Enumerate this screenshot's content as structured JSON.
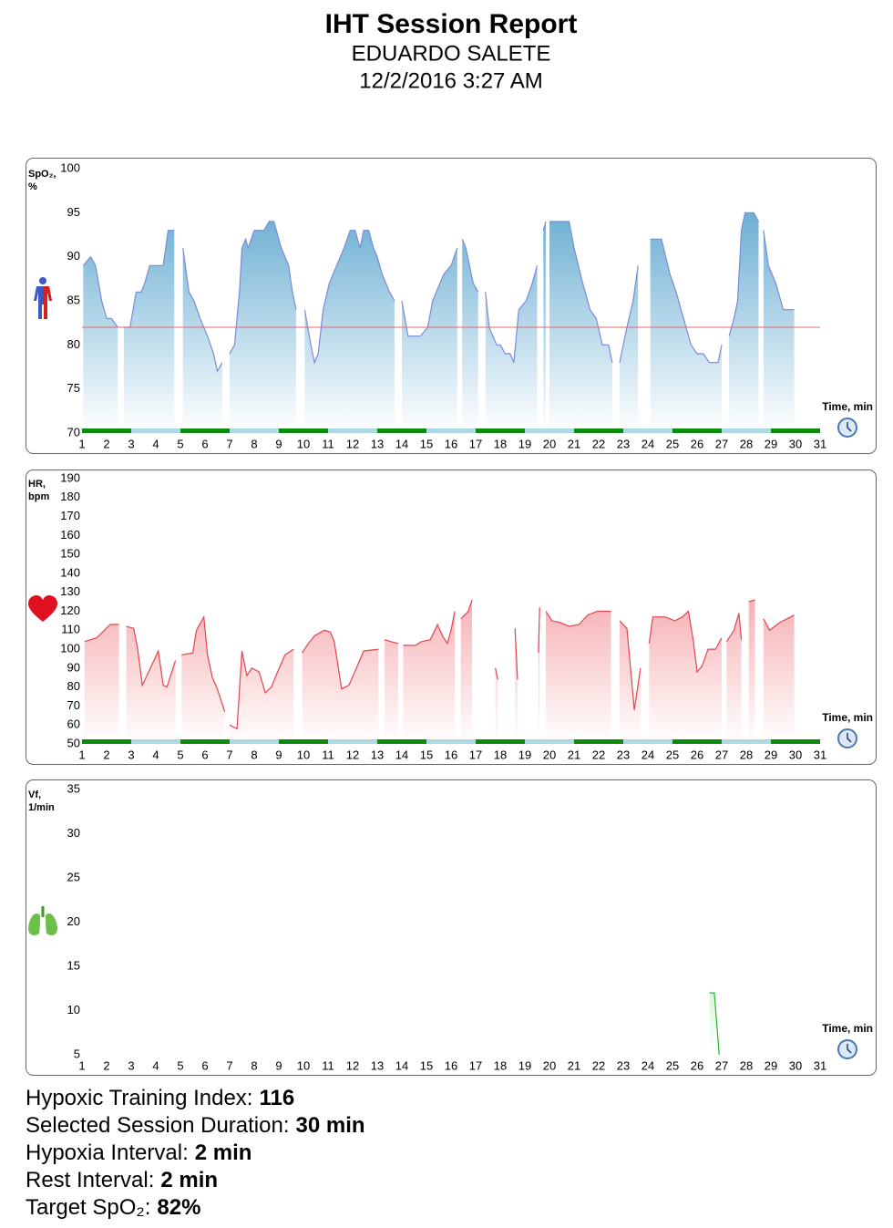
{
  "header": {
    "title": "IHT Session Report",
    "name": "EDUARDO SALETE",
    "date": "12/2/2016 3:27 AM"
  },
  "chart_data": [
    {
      "type": "area",
      "y_label": [
        "SpO₂,",
        "%"
      ],
      "x_label": "Time, min",
      "xlim": [
        1,
        31
      ],
      "xticks": [
        1,
        2,
        3,
        4,
        5,
        6,
        7,
        8,
        9,
        10,
        11,
        12,
        13,
        14,
        15,
        16,
        17,
        18,
        19,
        20,
        21,
        22,
        23,
        24,
        25,
        26,
        27,
        28,
        29,
        30,
        31
      ],
      "ylim": [
        70,
        100
      ],
      "yticks": [
        70,
        75,
        80,
        85,
        90,
        95,
        100
      ],
      "x": [
        1.05,
        1.35,
        1.55,
        1.8,
        2,
        2.2,
        2.45,
        2.58,
        2.7,
        2.95,
        3.2,
        3.4,
        3.55,
        3.75,
        4.1,
        4.3,
        4.5,
        4.75,
        4.9,
        5.1,
        5.35,
        5.55,
        5.8,
        6.1,
        6.35,
        6.5,
        6.7,
        6.85,
        7,
        7.2,
        7.4,
        7.5,
        7.65,
        7.75,
        8,
        8.4,
        8.6,
        8.8,
        9.1,
        9.4,
        9.55,
        9.7,
        9.88,
        10.05,
        10.3,
        10.45,
        10.6,
        10.8,
        11.05,
        11.35,
        11.65,
        11.9,
        12.1,
        12.3,
        12.45,
        12.65,
        12.85,
        13,
        13.2,
        13.5,
        13.7,
        13.82,
        14,
        14.25,
        14.5,
        14.75,
        15.05,
        15.25,
        15.4,
        15.7,
        16,
        16.25,
        16.35,
        16.45,
        16.6,
        16.9,
        17.1,
        17.25,
        17.4,
        17.55,
        17.85,
        18,
        18.2,
        18.4,
        18.55,
        18.75,
        19.05,
        19.3,
        19.5,
        19.65,
        19.75,
        19.85,
        19.92,
        20,
        20.8,
        21,
        21.35,
        21.65,
        21.9,
        22.15,
        22.4,
        22.55,
        22.7,
        22.85,
        23.15,
        23.4,
        23.6,
        23.85,
        24.1,
        24.55,
        24.9,
        25.15,
        25.45,
        25.75,
        26,
        26.25,
        26.5,
        26.85,
        27,
        27.15,
        27.3,
        27.5,
        27.65,
        27.8,
        27.95,
        28.3,
        28.5,
        28.6,
        28.7,
        28.9,
        29.2,
        29.5,
        29.95
      ],
      "values": [
        89,
        90,
        89,
        85,
        83,
        83,
        82,
        null,
        82,
        82,
        86,
        86,
        87,
        89,
        89,
        89,
        93,
        93,
        null,
        91,
        86,
        85,
        83,
        81,
        79,
        77,
        78,
        null,
        79,
        80,
        86,
        91,
        92,
        91,
        93,
        93,
        94,
        94,
        91,
        89,
        86,
        84,
        null,
        84,
        80,
        78,
        79,
        84,
        87,
        89,
        91,
        93,
        93,
        91,
        93,
        93,
        91,
        90,
        88,
        86,
        85,
        null,
        85,
        81,
        81,
        81,
        82,
        85,
        86,
        88,
        89,
        91,
        null,
        92,
        91,
        87,
        86,
        null,
        86,
        82,
        80,
        80,
        79,
        79,
        78,
        84,
        85,
        87,
        89,
        null,
        93,
        94,
        null,
        94,
        94,
        91,
        87,
        84,
        83,
        80,
        80,
        78,
        null,
        78,
        82,
        85,
        89,
        null,
        92,
        92,
        88,
        86,
        83,
        80,
        79,
        79,
        78,
        78,
        80,
        null,
        81,
        83,
        85,
        93,
        95,
        95,
        94,
        null,
        93,
        89,
        87,
        84,
        84
      ],
      "color": "#7b8bd8",
      "fill": "#5fa8cf",
      "label_color": "#1a1aa0",
      "target": 82,
      "target_color": "#e06a6a",
      "intervals": [
        [
          1,
          3
        ],
        [
          3,
          5
        ],
        [
          5,
          7
        ],
        [
          7,
          9
        ],
        [
          9,
          11
        ],
        [
          11,
          13
        ],
        [
          13,
          15
        ],
        [
          15,
          17
        ],
        [
          17,
          19
        ],
        [
          19,
          21
        ],
        [
          21,
          23
        ],
        [
          23,
          25
        ],
        [
          25,
          27
        ],
        [
          27,
          29
        ],
        [
          29,
          31
        ]
      ],
      "interval_colors": [
        "#0b8a0b",
        "#add8e6"
      ]
    },
    {
      "type": "area",
      "y_label": [
        "HR,",
        "bpm"
      ],
      "x_label": "Time, min",
      "xlim": [
        1,
        31
      ],
      "xticks": [
        1,
        2,
        3,
        4,
        5,
        6,
        7,
        8,
        9,
        10,
        11,
        12,
        13,
        14,
        15,
        16,
        17,
        18,
        19,
        20,
        21,
        22,
        23,
        24,
        25,
        26,
        27,
        28,
        29,
        30,
        31
      ],
      "ylim": [
        50,
        190
      ],
      "yticks": [
        50,
        60,
        70,
        80,
        90,
        100,
        110,
        120,
        130,
        140,
        150,
        160,
        170,
        180,
        190
      ],
      "x": [
        1.1,
        1.6,
        2.15,
        2.5,
        2.65,
        2.8,
        3.1,
        3.25,
        3.45,
        3.6,
        4.1,
        4.3,
        4.45,
        4.8,
        4.9,
        5.05,
        5.5,
        5.65,
        5.95,
        6.1,
        6.3,
        6.5,
        6.8,
        6.9,
        7,
        7.3,
        7.5,
        7.7,
        7.9,
        8.2,
        8.45,
        8.7,
        8.95,
        9.25,
        9.6,
        9.75,
        9.95,
        10.2,
        10.45,
        10.85,
        11.1,
        11.25,
        11.55,
        11.85,
        12.15,
        12.45,
        13.05,
        13.2,
        13.3,
        13.55,
        13.85,
        13.95,
        14.05,
        14.55,
        14.8,
        15.15,
        15.45,
        15.65,
        15.85,
        16,
        16.15,
        16.28,
        16.4,
        16.7,
        16.85,
        17.2,
        17.8,
        17.9,
        18.2,
        18.6,
        18.7,
        19.1,
        19.55,
        19.6,
        19.75,
        19.85,
        20.1,
        20.45,
        20.8,
        21.2,
        21.55,
        21.95,
        22.5,
        22.65,
        22.85,
        23.15,
        23.45,
        23.7,
        23.9,
        24.05,
        24.2,
        24.7,
        25.1,
        25.4,
        25.65,
        25.85,
        26,
        26.2,
        26.45,
        26.75,
        27,
        27.1,
        27.2,
        27.5,
        27.7,
        27.8,
        27.95,
        28.1,
        28.35,
        28.5,
        28.7,
        28.95,
        29.35,
        29.95
      ],
      "values": [
        104,
        106,
        113,
        113,
        null,
        112,
        111,
        101,
        81,
        85,
        99,
        81,
        80,
        94,
        null,
        97,
        98,
        110,
        117,
        97,
        85,
        79,
        67,
        null,
        60,
        58,
        99,
        86,
        90,
        88,
        77,
        80,
        88,
        97,
        100,
        null,
        98,
        103,
        107,
        110,
        109,
        104,
        79,
        81,
        90,
        99,
        100,
        null,
        105,
        104,
        103,
        null,
        102,
        102,
        104,
        105,
        113,
        107,
        103,
        110,
        120,
        null,
        116,
        120,
        126,
        null,
        90,
        84,
        null,
        111,
        84,
        null,
        98,
        122,
        null,
        120,
        115,
        114,
        112,
        113,
        118,
        120,
        120,
        null,
        115,
        111,
        68,
        90,
        null,
        103,
        117,
        117,
        115,
        117,
        120,
        104,
        88,
        91,
        100,
        100,
        106,
        null,
        104,
        110,
        119,
        105,
        null,
        125,
        126,
        null,
        116,
        110,
        114,
        118
      ],
      "color": "#e04550",
      "fill": "#f07c82",
      "label_color": "#d01010",
      "intervals": [
        [
          1,
          3
        ],
        [
          3,
          5
        ],
        [
          5,
          7
        ],
        [
          7,
          9
        ],
        [
          9,
          11
        ],
        [
          11,
          13
        ],
        [
          13,
          15
        ],
        [
          15,
          17
        ],
        [
          17,
          19
        ],
        [
          19,
          21
        ],
        [
          21,
          23
        ],
        [
          23,
          25
        ],
        [
          25,
          27
        ],
        [
          27,
          29
        ],
        [
          29,
          31
        ]
      ],
      "interval_colors": [
        "#0b8a0b",
        "#add8e6"
      ]
    },
    {
      "type": "area",
      "y_label": [
        "Vf,",
        "1/min"
      ],
      "x_label": "Time, min",
      "xlim": [
        1,
        31
      ],
      "xticks": [
        1,
        2,
        3,
        4,
        5,
        6,
        7,
        8,
        9,
        10,
        11,
        12,
        13,
        14,
        15,
        16,
        17,
        18,
        19,
        20,
        21,
        22,
        23,
        24,
        25,
        26,
        27,
        28,
        29,
        30,
        31
      ],
      "ylim": [
        5,
        35
      ],
      "yticks": [
        5,
        10,
        15,
        20,
        25,
        30,
        35
      ],
      "x": [
        26.5,
        26.7,
        26.9
      ],
      "values": [
        12,
        12,
        5
      ],
      "color": "#2db32d",
      "fill": "#6fdc6f",
      "label_color": "#118811"
    }
  ],
  "summary": [
    {
      "label": "Hypoxic Training Index:",
      "value": "116"
    },
    {
      "label": "Selected Session Duration:",
      "value": "30 min"
    },
    {
      "label": "Hypoxia Interval:",
      "value": "2 min"
    },
    {
      "label": "Rest Interval:",
      "value": "2 min"
    },
    {
      "label": "Target SpO₂:",
      "value": "82%"
    }
  ]
}
